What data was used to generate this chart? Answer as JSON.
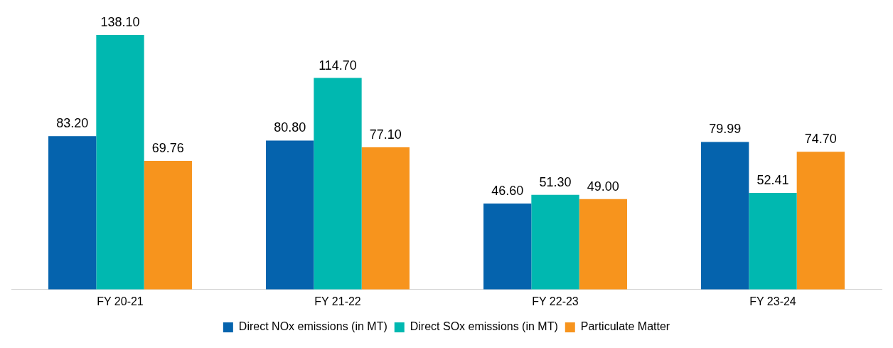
{
  "chart_data": {
    "type": "bar",
    "categories": [
      "FY 20-21",
      "FY 21-22",
      "FY 22-23",
      "FY 23-24"
    ],
    "series": [
      {
        "name": "Direct NOx emissions (in MT)",
        "color": "#0563ad",
        "values": [
          83.2,
          80.8,
          46.6,
          79.99
        ],
        "value_labels": [
          "83.20",
          "80.80",
          "46.60",
          "79.99"
        ]
      },
      {
        "name": "Direct SOx emissions (in MT)",
        "color": "#00b8b0",
        "values": [
          138.1,
          114.7,
          51.3,
          52.41
        ],
        "value_labels": [
          "138.10",
          "114.70",
          "51.30",
          "52.41"
        ]
      },
      {
        "name": "Particulate Matter",
        "color": "#f7941d",
        "values": [
          69.76,
          77.1,
          49.0,
          74.7
        ],
        "value_labels": [
          "69.76",
          "77.10",
          "49.00",
          "74.70"
        ]
      }
    ],
    "legend": "bottom",
    "grid": false,
    "tick_labels": "x"
  }
}
